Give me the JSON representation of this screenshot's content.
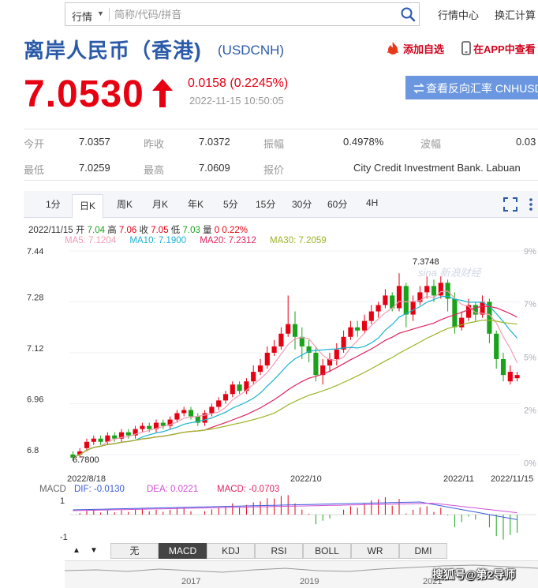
{
  "search": {
    "category": "行情",
    "placeholder": "简称/代码/拼音"
  },
  "top_links": [
    "行情中心",
    "换汇计算"
  ],
  "header": {
    "title": "离岸人民币（香港)",
    "symbol": "(USDCNH)",
    "add_favorite": "添加自选",
    "in_app": "在APP中查看"
  },
  "quote": {
    "price": "7.0530",
    "change": "0.0158 (0.2245%)",
    "timestamp": "2022-11-15 10:50:05",
    "reverse_rate_button": "查看反向汇率 CNHUSD"
  },
  "stats": [
    {
      "label": "今开",
      "value": "7.0357"
    },
    {
      "label": "昨收",
      "value": "7.0372"
    },
    {
      "label": "振幅",
      "value": "0.4978%"
    },
    {
      "label": "波幅",
      "value": "0.03"
    },
    {
      "label": "最低",
      "value": "7.0259"
    },
    {
      "label": "最高",
      "value": "7.0609"
    },
    {
      "label": "报价",
      "value": "City Credit Investment Bank. Labuan"
    }
  ],
  "chart_tabs": [
    "1分",
    "日K",
    "周K",
    "月K",
    "年K",
    "5分",
    "15分",
    "30分",
    "60分",
    "4H"
  ],
  "active_tab": "日K",
  "ohlc": {
    "date": "2022/11/15",
    "open_label": "开",
    "open": "7.04",
    "high_label": "高",
    "high": "7.06",
    "close_label": "收",
    "close": "7.05",
    "low_label": "低",
    "low": "7.03",
    "change_label": "量",
    "change_pct": "0 0.22%"
  },
  "ma_legend": [
    {
      "label": "MA5: 7.1204",
      "color": "#f29cb6"
    },
    {
      "label": "MA10: 7.1900",
      "color": "#1ab3d1"
    },
    {
      "label": "MA20: 7.2312",
      "color": "#e0245e"
    },
    {
      "label": "MA30: 7.2059",
      "color": "#9ab523"
    }
  ],
  "macd_legend": {
    "name": "MACD",
    "dif": "DIF: -0.0130",
    "dea": "DEA: 0.0221",
    "macd": "MACD: -0.0703"
  },
  "indicator_tabs": [
    "无",
    "MACD",
    "KDJ",
    "RSI",
    "BOLL",
    "WR",
    "DMI"
  ],
  "active_indicator": "MACD",
  "overview_years": [
    "2017",
    "2019",
    "2021"
  ],
  "watermark": "sina 新浪财经",
  "footer_watermark": "搜狐号@第2导师",
  "colors": {
    "up": "#e60012",
    "down": "#1aa31a",
    "title_blue": "#2a5aa8"
  },
  "chart_data": {
    "type": "candlestick",
    "y_ticks": [
      "7.44",
      "7.28",
      "7.12",
      "6.96",
      "6.8"
    ],
    "pct_ticks": [
      "9%",
      "7%",
      "5%",
      "2%",
      "0%"
    ],
    "x_ticks": [
      "2022/8/18",
      "2022/10",
      "2022/11",
      "2022/11/15"
    ],
    "ylim": [
      6.76,
      7.44
    ],
    "annotations": {
      "max": "7.3748",
      "min": "6.7800"
    },
    "candles": [
      [
        6.8,
        6.79,
        6.81,
        6.78
      ],
      [
        6.8,
        6.81,
        6.82,
        6.79
      ],
      [
        6.82,
        6.84,
        6.85,
        6.81
      ],
      [
        6.84,
        6.85,
        6.86,
        6.83
      ],
      [
        6.85,
        6.84,
        6.86,
        6.83
      ],
      [
        6.84,
        6.86,
        6.87,
        6.83
      ],
      [
        6.86,
        6.85,
        6.87,
        6.84
      ],
      [
        6.85,
        6.87,
        6.88,
        6.84
      ],
      [
        6.87,
        6.86,
        6.88,
        6.85
      ],
      [
        6.86,
        6.88,
        6.89,
        6.85
      ],
      [
        6.88,
        6.89,
        6.9,
        6.87
      ],
      [
        6.89,
        6.88,
        6.9,
        6.87
      ],
      [
        6.88,
        6.9,
        6.91,
        6.87
      ],
      [
        6.9,
        6.89,
        6.91,
        6.88
      ],
      [
        6.89,
        6.91,
        6.92,
        6.88
      ],
      [
        6.91,
        6.93,
        6.94,
        6.9
      ],
      [
        6.93,
        6.94,
        6.95,
        6.92
      ],
      [
        6.94,
        6.92,
        6.95,
        6.91
      ],
      [
        6.92,
        6.9,
        6.93,
        6.89
      ],
      [
        6.9,
        6.93,
        6.94,
        6.89
      ],
      [
        6.93,
        6.95,
        6.96,
        6.92
      ],
      [
        6.95,
        6.97,
        6.98,
        6.94
      ],
      [
        6.97,
        6.99,
        7.0,
        6.96
      ],
      [
        6.99,
        7.02,
        7.03,
        6.98
      ],
      [
        7.02,
        7.0,
        7.03,
        6.99
      ],
      [
        7.0,
        7.03,
        7.04,
        6.99
      ],
      [
        7.03,
        7.06,
        7.08,
        7.02
      ],
      [
        7.06,
        7.08,
        7.1,
        7.05
      ],
      [
        7.08,
        7.12,
        7.14,
        7.07
      ],
      [
        7.12,
        7.14,
        7.16,
        7.11
      ],
      [
        7.14,
        7.18,
        7.2,
        7.13
      ],
      [
        7.18,
        7.21,
        7.3,
        7.17
      ],
      [
        7.21,
        7.17,
        7.25,
        7.13
      ],
      [
        7.17,
        7.14,
        7.2,
        7.1
      ],
      [
        7.14,
        7.12,
        7.16,
        7.09
      ],
      [
        7.12,
        7.05,
        7.14,
        7.03
      ],
      [
        7.05,
        7.08,
        7.1,
        7.02
      ],
      [
        7.08,
        7.1,
        7.12,
        7.06
      ],
      [
        7.1,
        7.13,
        7.15,
        7.08
      ],
      [
        7.13,
        7.17,
        7.19,
        7.12
      ],
      [
        7.17,
        7.2,
        7.22,
        7.16
      ],
      [
        7.2,
        7.19,
        7.22,
        7.17
      ],
      [
        7.19,
        7.22,
        7.24,
        7.18
      ],
      [
        7.22,
        7.25,
        7.27,
        7.21
      ],
      [
        7.25,
        7.27,
        7.28,
        7.23
      ],
      [
        7.27,
        7.3,
        7.32,
        7.26
      ],
      [
        7.3,
        7.26,
        7.31,
        7.25
      ],
      [
        7.26,
        7.33,
        7.37,
        7.25
      ],
      [
        7.33,
        7.24,
        7.34,
        7.2
      ],
      [
        7.24,
        7.28,
        7.3,
        7.22
      ],
      [
        7.28,
        7.31,
        7.33,
        7.27
      ],
      [
        7.31,
        7.33,
        7.36,
        7.29
      ],
      [
        7.33,
        7.3,
        7.35,
        7.28
      ],
      [
        7.3,
        7.34,
        7.36,
        7.29
      ],
      [
        7.34,
        7.29,
        7.35,
        7.25
      ],
      [
        7.29,
        7.2,
        7.31,
        7.18
      ],
      [
        7.2,
        7.23,
        7.25,
        7.19
      ],
      [
        7.23,
        7.27,
        7.29,
        7.22
      ],
      [
        7.27,
        7.24,
        7.28,
        7.22
      ],
      [
        7.24,
        7.28,
        7.3,
        7.23
      ],
      [
        7.28,
        7.18,
        7.29,
        7.15
      ],
      [
        7.18,
        7.1,
        7.19,
        7.07
      ],
      [
        7.1,
        7.05,
        7.12,
        7.03
      ],
      [
        7.03,
        7.06,
        7.08,
        7.02
      ],
      [
        7.04,
        7.05,
        7.06,
        7.03
      ]
    ]
  }
}
